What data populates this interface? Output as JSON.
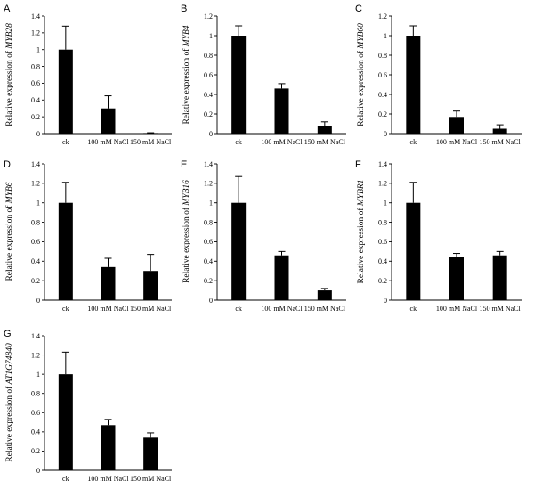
{
  "figure": {
    "chart_data": [
      {
        "panel": "A",
        "type": "bar",
        "ylabel": "Relative expression of ",
        "gene": "MYB28",
        "categories": [
          "ck",
          "100 mM NaCl",
          "150 mM NaCl"
        ],
        "values": [
          1.0,
          0.3,
          0.005
        ],
        "errors": [
          0.28,
          0.15,
          0.005
        ],
        "ylim": [
          0,
          1.4
        ],
        "yticks": [
          "0",
          "0.2",
          "0.4",
          "0.6",
          "0.8",
          "1",
          "1.2",
          "1.4"
        ]
      },
      {
        "panel": "B",
        "type": "bar",
        "ylabel": "Relative expression of ",
        "gene": "MYB4",
        "categories": [
          "ck",
          "100 mM NaCl",
          "150 mM NaCl"
        ],
        "values": [
          1.0,
          0.46,
          0.08
        ],
        "errors": [
          0.1,
          0.05,
          0.04
        ],
        "ylim": [
          0,
          1.2
        ],
        "yticks": [
          "0",
          "0.2",
          "0.4",
          "0.6",
          "0.8",
          "1",
          "1.2"
        ]
      },
      {
        "panel": "C",
        "type": "bar",
        "ylabel": "Relative expression of ",
        "gene": "MYB60",
        "categories": [
          "ck",
          "100 mM NaCl",
          "150 mM NaCl"
        ],
        "values": [
          1.0,
          0.17,
          0.05
        ],
        "errors": [
          0.1,
          0.06,
          0.04
        ],
        "ylim": [
          0,
          1.2
        ],
        "yticks": [
          "0",
          "0.2",
          "0.4",
          "0.6",
          "0.8",
          "1",
          "1.2"
        ]
      },
      {
        "panel": "D",
        "type": "bar",
        "ylabel": "Relative expression of ",
        "gene": "MYB6",
        "categories": [
          "ck",
          "100 mM NaCl",
          "150 mM NaCl"
        ],
        "values": [
          1.0,
          0.34,
          0.3
        ],
        "errors": [
          0.21,
          0.09,
          0.17
        ],
        "ylim": [
          0,
          1.4
        ],
        "yticks": [
          "0",
          "0.2",
          "0.4",
          "0.6",
          "0.8",
          "1",
          "1.2",
          "1.4"
        ]
      },
      {
        "panel": "E",
        "type": "bar",
        "ylabel": "Relative expression of ",
        "gene": "MYB16",
        "categories": [
          "ck",
          "100 mM NaCl",
          "150 mM NaCl"
        ],
        "values": [
          1.0,
          0.46,
          0.1
        ],
        "errors": [
          0.27,
          0.04,
          0.02
        ],
        "ylim": [
          0,
          1.4
        ],
        "yticks": [
          "0",
          "0.2",
          "0.4",
          "0.6",
          "0.8",
          "1",
          "1.2",
          "1.4"
        ]
      },
      {
        "panel": "F",
        "type": "bar",
        "ylabel": "Relative expression of ",
        "gene": "MYBR1",
        "categories": [
          "ck",
          "100 mM NaCl",
          "150 mM NaCl"
        ],
        "values": [
          1.0,
          0.44,
          0.46
        ],
        "errors": [
          0.21,
          0.04,
          0.04
        ],
        "ylim": [
          0,
          1.4
        ],
        "yticks": [
          "0",
          "0.2",
          "0.4",
          "0.6",
          "0.8",
          "1",
          "1.2",
          "1.4"
        ]
      },
      {
        "panel": "G",
        "type": "bar",
        "ylabel": "Relative expression of ",
        "gene": "AT1G74840",
        "categories": [
          "ck",
          "100 mM NaCl",
          "150 mM NaCl"
        ],
        "values": [
          1.0,
          0.47,
          0.34
        ],
        "errors": [
          0.23,
          0.06,
          0.05
        ],
        "ylim": [
          0,
          1.4
        ],
        "yticks": [
          "0",
          "0.2",
          "0.4",
          "0.6",
          "0.8",
          "1",
          "1.2",
          "1.4"
        ]
      }
    ]
  }
}
